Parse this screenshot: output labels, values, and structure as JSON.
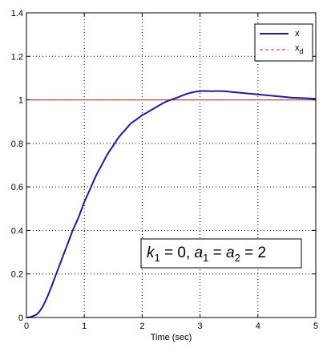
{
  "chart_data": {
    "type": "line",
    "xlabel": "Time (sec)",
    "ylabel": "",
    "xlim": [
      0,
      5
    ],
    "ylim": [
      0,
      1.4
    ],
    "xticks": [
      "0",
      "1",
      "2",
      "3",
      "4",
      "5"
    ],
    "yticks": [
      "0",
      "0.2",
      "0.4",
      "0.6",
      "0.8",
      "1",
      "1.2",
      "1.4"
    ],
    "grid": true,
    "legend_position": "top-right",
    "annotation": "k1 = 0, a1 = a2 = 2",
    "series": [
      {
        "name": "x",
        "color": "#1a1aa6",
        "style": "solid",
        "x": [
          0,
          0.1,
          0.2,
          0.3,
          0.4,
          0.5,
          0.6,
          0.7,
          0.8,
          0.9,
          1.0,
          1.1,
          1.2,
          1.3,
          1.4,
          1.5,
          1.6,
          1.7,
          1.8,
          1.9,
          2.0,
          2.2,
          2.4,
          2.6,
          2.8,
          3.0,
          3.2,
          3.4,
          3.6,
          3.8,
          4.0,
          4.2,
          4.4,
          4.6,
          4.8,
          5.0
        ],
        "y": [
          0,
          0.005,
          0.02,
          0.06,
          0.12,
          0.19,
          0.26,
          0.33,
          0.4,
          0.46,
          0.53,
          0.59,
          0.65,
          0.7,
          0.75,
          0.79,
          0.83,
          0.86,
          0.89,
          0.91,
          0.93,
          0.96,
          0.99,
          1.01,
          1.03,
          1.04,
          1.04,
          1.04,
          1.035,
          1.03,
          1.025,
          1.02,
          1.015,
          1.01,
          1.008,
          1.005
        ]
      },
      {
        "name": "x_d",
        "color": "#d42020",
        "style": "dashed",
        "x": [
          0,
          5
        ],
        "y": [
          1,
          1
        ]
      }
    ]
  },
  "legend": {
    "entries": [
      {
        "label": "x",
        "sub": ""
      },
      {
        "label": "x",
        "sub": "d"
      }
    ]
  },
  "annotation": {
    "text_k": "k",
    "text_k_sub": "1",
    "text_mid": " = 0, ",
    "text_a": "a",
    "text_a_sub": "1",
    "text_eq": " = ",
    "text_a2": "a",
    "text_a2_sub": "2",
    "text_end": " = 2"
  }
}
